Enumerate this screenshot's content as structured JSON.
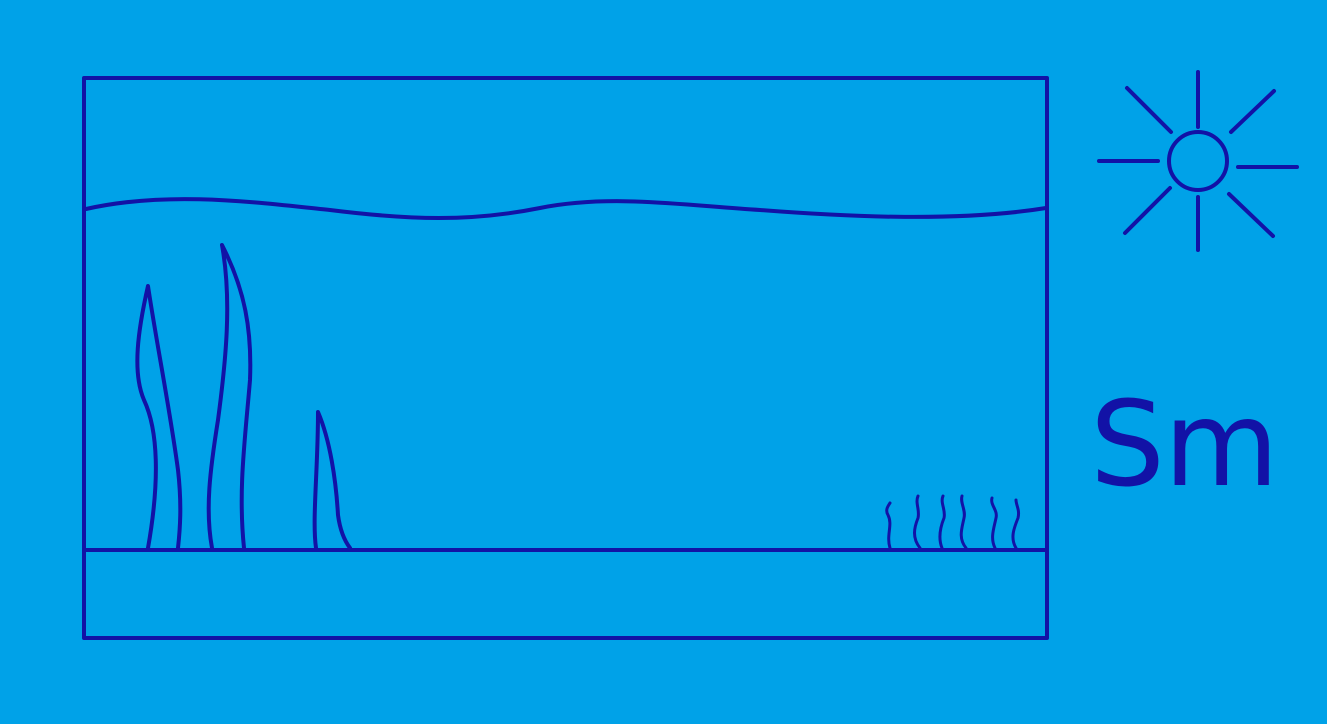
{
  "colors": {
    "background": "#00a2e8",
    "stroke": "#1212a6"
  },
  "icons": {
    "sun": "sun-icon"
  },
  "label": {
    "text": "Sm"
  }
}
